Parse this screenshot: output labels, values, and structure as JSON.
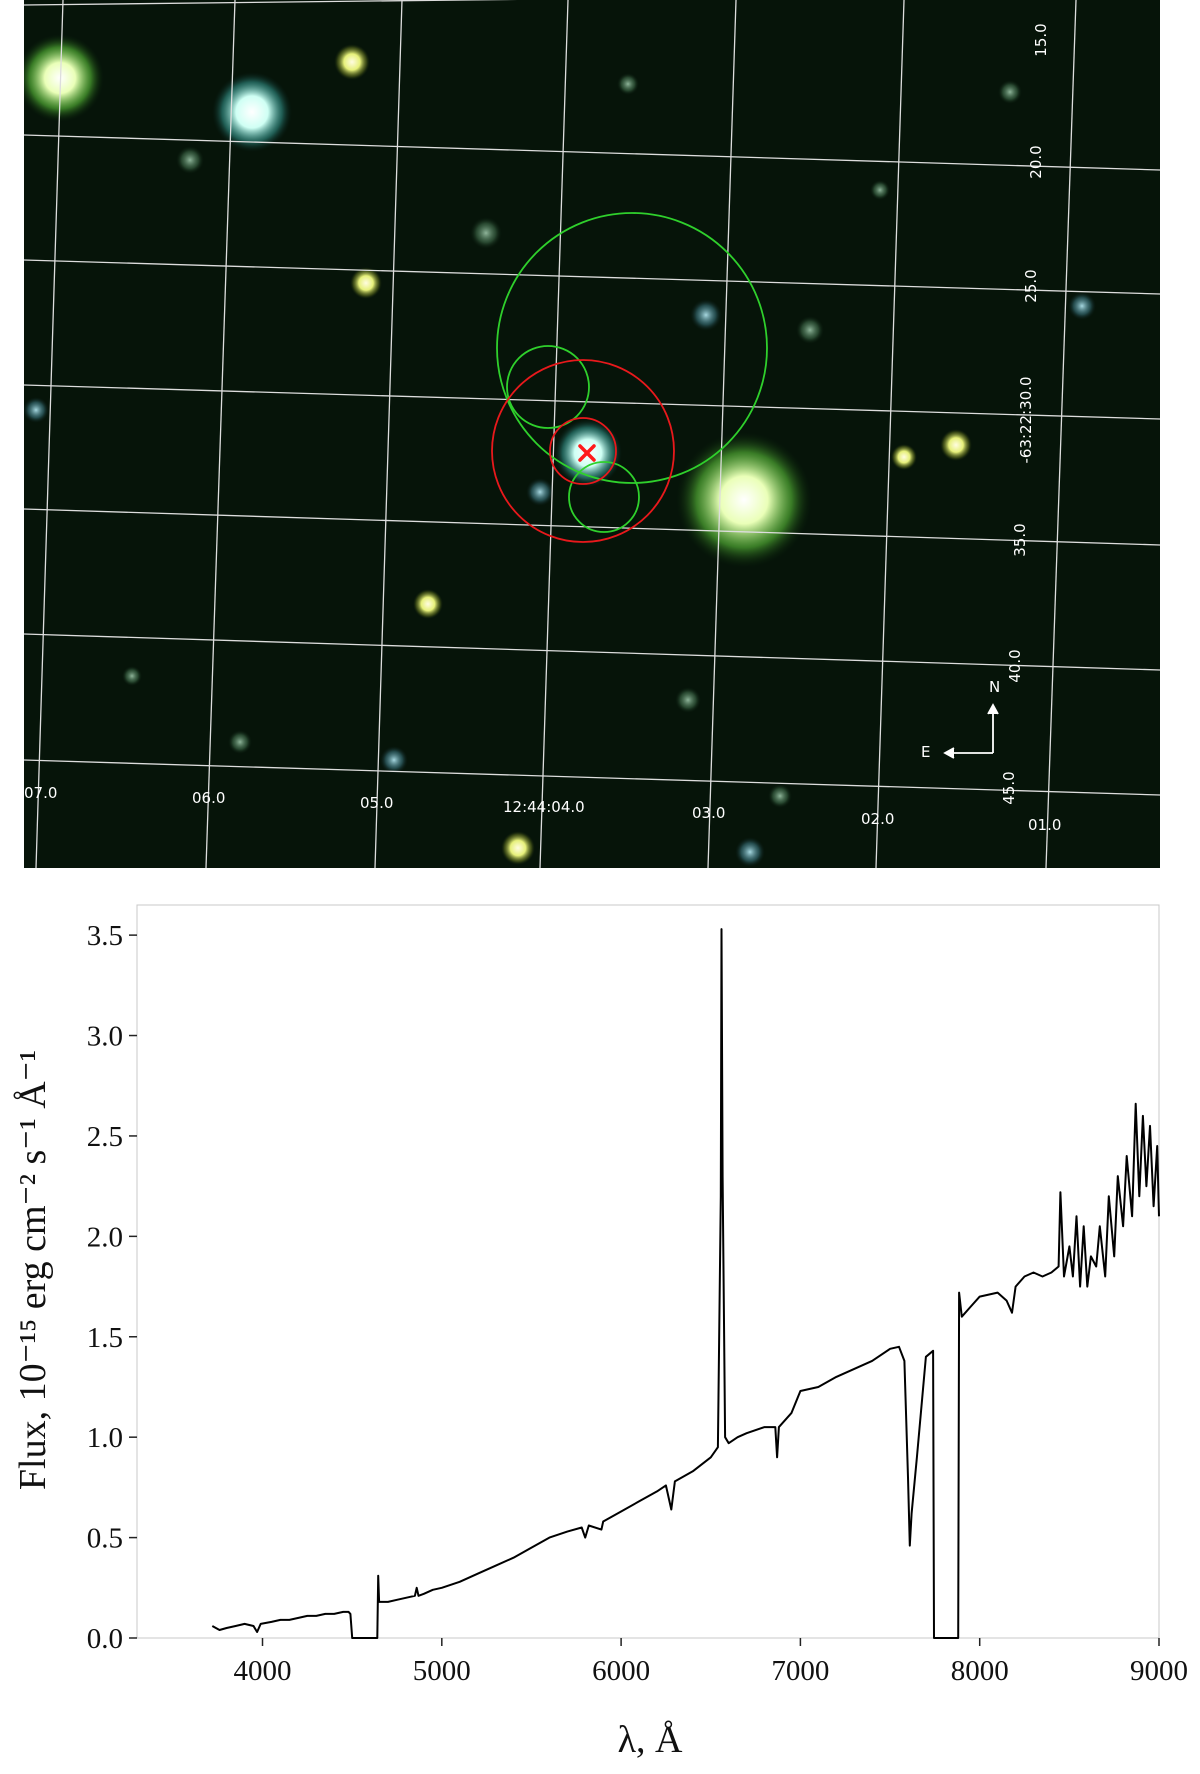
{
  "image_panel": {
    "ra_labels": [
      "07.0",
      "06.0",
      "05.0",
      "12:44:04.0",
      "03.0",
      "02.0",
      "01.0"
    ],
    "dec_labels": [
      "15.0",
      "20.0",
      "25.0",
      "-63:22:30.0",
      "35.0",
      "40.0",
      "45.0"
    ],
    "compass": {
      "north": "N",
      "east": "E"
    },
    "colors": {
      "background": "#061409",
      "grid": "#dddddd",
      "error_circle_red": "#e8191c",
      "error_circle_green": "#2fd02c",
      "marker": "#ff1a1a"
    },
    "marker_icon": "x-mark"
  },
  "chart_data": {
    "type": "line",
    "xlabel": "λ, Å",
    "ylabel": "Flux, 10⁻¹⁵ erg cm⁻² s⁻¹ Å⁻¹",
    "xlim": [
      3300,
      9000
    ],
    "ylim": [
      0.0,
      3.65
    ],
    "xticks": [
      4000,
      5000,
      6000,
      7000,
      8000,
      9000
    ],
    "yticks": [
      0.0,
      0.5,
      1.0,
      1.5,
      2.0,
      2.5,
      3.0,
      3.5
    ],
    "ytick_labels": [
      "0.0",
      "0.5",
      "1.0",
      "1.5",
      "2.0",
      "2.5",
      "3.0",
      "3.5"
    ],
    "grid": false,
    "series": [
      {
        "color": "#000000",
        "points": [
          [
            3720,
            0.06
          ],
          [
            3760,
            0.04
          ],
          [
            3800,
            0.05
          ],
          [
            3850,
            0.06
          ],
          [
            3900,
            0.07
          ],
          [
            3950,
            0.06
          ],
          [
            3970,
            0.03
          ],
          [
            3990,
            0.07
          ],
          [
            4050,
            0.08
          ],
          [
            4100,
            0.09
          ],
          [
            4150,
            0.09
          ],
          [
            4200,
            0.1
          ],
          [
            4250,
            0.11
          ],
          [
            4300,
            0.11
          ],
          [
            4350,
            0.12
          ],
          [
            4400,
            0.12
          ],
          [
            4450,
            0.13
          ],
          [
            4480,
            0.13
          ],
          [
            4490,
            0.12
          ],
          [
            4500,
            0.0
          ],
          [
            4640,
            0.0
          ],
          [
            4645,
            0.31
          ],
          [
            4650,
            0.18
          ],
          [
            4700,
            0.18
          ],
          [
            4750,
            0.19
          ],
          [
            4800,
            0.2
          ],
          [
            4850,
            0.21
          ],
          [
            4860,
            0.25
          ],
          [
            4870,
            0.21
          ],
          [
            4900,
            0.22
          ],
          [
            4950,
            0.24
          ],
          [
            5000,
            0.25
          ],
          [
            5100,
            0.28
          ],
          [
            5200,
            0.32
          ],
          [
            5300,
            0.36
          ],
          [
            5400,
            0.4
          ],
          [
            5500,
            0.45
          ],
          [
            5600,
            0.5
          ],
          [
            5700,
            0.53
          ],
          [
            5780,
            0.55
          ],
          [
            5800,
            0.5
          ],
          [
            5820,
            0.56
          ],
          [
            5890,
            0.54
          ],
          [
            5900,
            0.58
          ],
          [
            6000,
            0.63
          ],
          [
            6100,
            0.68
          ],
          [
            6200,
            0.73
          ],
          [
            6250,
            0.76
          ],
          [
            6280,
            0.64
          ],
          [
            6300,
            0.78
          ],
          [
            6400,
            0.83
          ],
          [
            6500,
            0.9
          ],
          [
            6540,
            0.95
          ],
          [
            6556,
            2.2
          ],
          [
            6560,
            3.53
          ],
          [
            6566,
            2.3
          ],
          [
            6580,
            1.0
          ],
          [
            6600,
            0.97
          ],
          [
            6650,
            1.0
          ],
          [
            6700,
            1.02
          ],
          [
            6800,
            1.05
          ],
          [
            6860,
            1.05
          ],
          [
            6870,
            0.9
          ],
          [
            6880,
            1.05
          ],
          [
            6950,
            1.12
          ],
          [
            7000,
            1.23
          ],
          [
            7100,
            1.25
          ],
          [
            7200,
            1.3
          ],
          [
            7300,
            1.34
          ],
          [
            7400,
            1.38
          ],
          [
            7500,
            1.44
          ],
          [
            7550,
            1.45
          ],
          [
            7580,
            1.38
          ],
          [
            7600,
            0.8
          ],
          [
            7610,
            0.46
          ],
          [
            7620,
            0.62
          ],
          [
            7650,
            0.9
          ],
          [
            7680,
            1.2
          ],
          [
            7700,
            1.4
          ],
          [
            7740,
            1.43
          ],
          [
            7745,
            0.0
          ],
          [
            7880,
            0.0
          ],
          [
            7885,
            1.72
          ],
          [
            7900,
            1.6
          ],
          [
            7950,
            1.65
          ],
          [
            8000,
            1.7
          ],
          [
            8100,
            1.72
          ],
          [
            8150,
            1.68
          ],
          [
            8180,
            1.62
          ],
          [
            8200,
            1.75
          ],
          [
            8250,
            1.8
          ],
          [
            8300,
            1.82
          ],
          [
            8350,
            1.8
          ],
          [
            8400,
            1.82
          ],
          [
            8440,
            1.85
          ],
          [
            8450,
            2.22
          ],
          [
            8470,
            1.8
          ],
          [
            8500,
            1.95
          ],
          [
            8520,
            1.8
          ],
          [
            8540,
            2.1
          ],
          [
            8560,
            1.75
          ],
          [
            8580,
            2.05
          ],
          [
            8600,
            1.75
          ],
          [
            8620,
            1.9
          ],
          [
            8650,
            1.85
          ],
          [
            8670,
            2.05
          ],
          [
            8700,
            1.8
          ],
          [
            8720,
            2.2
          ],
          [
            8750,
            1.9
          ],
          [
            8770,
            2.3
          ],
          [
            8800,
            2.05
          ],
          [
            8820,
            2.4
          ],
          [
            8850,
            2.1
          ],
          [
            8870,
            2.66
          ],
          [
            8890,
            2.2
          ],
          [
            8910,
            2.6
          ],
          [
            8930,
            2.25
          ],
          [
            8950,
            2.55
          ],
          [
            8970,
            2.15
          ],
          [
            8990,
            2.45
          ],
          [
            9000,
            2.1
          ]
        ]
      }
    ]
  }
}
